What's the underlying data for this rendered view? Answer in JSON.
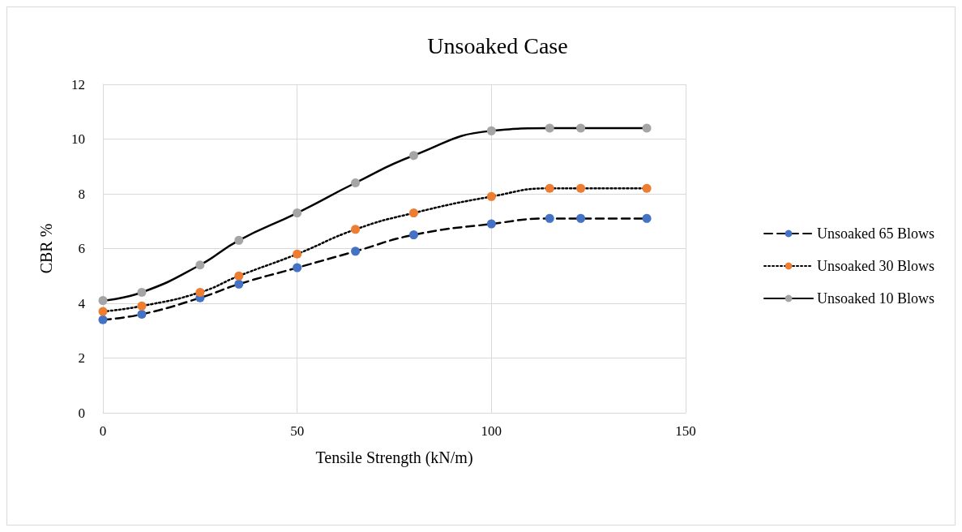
{
  "chart_data": {
    "type": "line",
    "title": "Unsoaked Case",
    "xlabel": "Tensile Strength (kN/m)",
    "ylabel": "CBR %",
    "xlim": [
      0,
      150
    ],
    "xticks": [
      0,
      50,
      100,
      150
    ],
    "ylim": [
      0,
      12
    ],
    "yticks": [
      0,
      2,
      4,
      6,
      8,
      10,
      12
    ],
    "grid": true,
    "legend": "right",
    "marker": "circle",
    "x": [
      0,
      10,
      25,
      35,
      50,
      65,
      80,
      100,
      115,
      123,
      140
    ],
    "series": [
      {
        "name": "Unsoaked 65 Blows",
        "color": "#4472c4",
        "line_style": "dashed",
        "values": [
          3.4,
          3.6,
          4.2,
          4.7,
          5.3,
          5.9,
          6.5,
          6.9,
          7.1,
          7.1,
          7.1
        ]
      },
      {
        "name": "Unsoaked 30 Blows",
        "color": "#ed7d31",
        "line_style": "dotted",
        "values": [
          3.7,
          3.9,
          4.4,
          5.0,
          5.8,
          6.7,
          7.3,
          7.9,
          8.2,
          8.2,
          8.2
        ]
      },
      {
        "name": "Unsoaked 10 Blows",
        "color": "#a5a5a5",
        "line_style": "solid",
        "values": [
          4.1,
          4.4,
          5.4,
          6.3,
          7.3,
          8.4,
          9.4,
          10.3,
          10.4,
          10.4,
          10.4
        ]
      }
    ]
  }
}
